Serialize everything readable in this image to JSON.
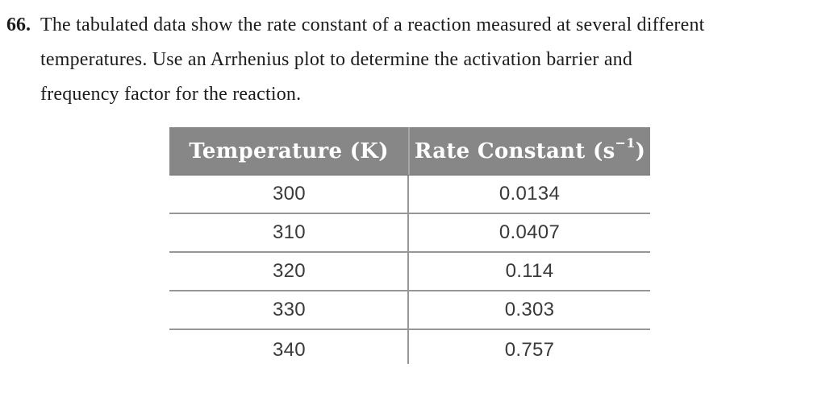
{
  "problem": {
    "number": "66.",
    "lines": [
      "The tabulated data show the rate constant of a reaction measured at several different",
      "temperatures. Use an Arrhenius plot to determine the activation barrier and",
      "frequency factor for the reaction."
    ]
  },
  "table": {
    "headers": {
      "col1": "Temperature (K)",
      "col2_pre": "Rate Constant (s",
      "col2_sup": "−1",
      "col2_post": ")"
    },
    "rows": [
      {
        "temperature": "300",
        "rate_constant": "0.0134"
      },
      {
        "temperature": "310",
        "rate_constant": "0.0407"
      },
      {
        "temperature": "320",
        "rate_constant": "0.114"
      },
      {
        "temperature": "330",
        "rate_constant": "0.303"
      },
      {
        "temperature": "340",
        "rate_constant": "0.757"
      }
    ]
  },
  "colors": {
    "header_bg": "#878787",
    "header_text": "#ffffff",
    "grid_line": "#969696",
    "header_divider": "#a6a6a6",
    "body_text": "#3a3a3a",
    "paragraph_text": "#1c1c1c",
    "page_bg": "#ffffff"
  }
}
